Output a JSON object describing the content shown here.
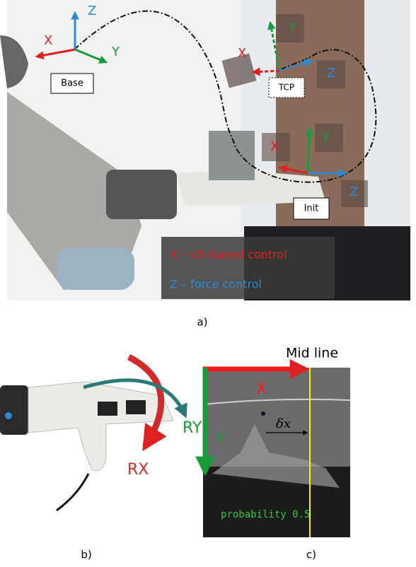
{
  "panel_a": {
    "base_frame": {
      "z": "Z",
      "x": "X",
      "y": "Y",
      "label": "Base"
    },
    "tcp_frame": {
      "y": "Y",
      "x": "X",
      "z": "Z",
      "label": "TCP"
    },
    "init_frame": {
      "x": "X",
      "y": "Y",
      "z": "Z",
      "label": "Init"
    },
    "legend": [
      "X – US-based control",
      "Z – force control"
    ],
    "caption": "a)"
  },
  "panel_b": {
    "rotations": [
      "RY",
      "RX"
    ],
    "caption": "b)"
  },
  "panel_c": {
    "mid_line": "Mid line",
    "x": "X",
    "y": "Y",
    "offset": "δx",
    "probability": "probability 0.5",
    "caption": "c)"
  }
}
